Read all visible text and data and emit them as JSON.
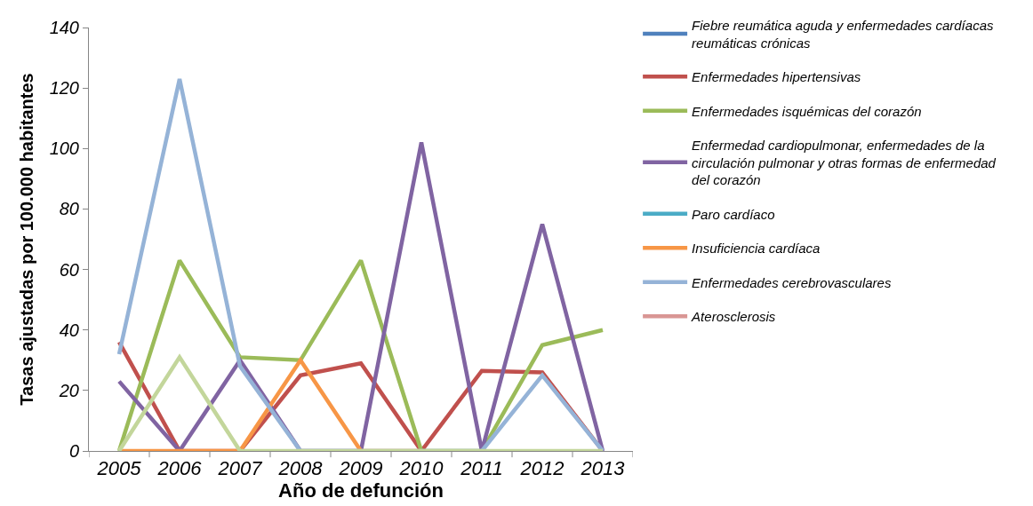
{
  "chart_data": {
    "type": "line",
    "xlabel": "Año de defunción",
    "ylabel": "Tasas ajustadas por 100.000 habitantes",
    "categories": [
      "2005",
      "2006",
      "2007",
      "2008",
      "2009",
      "2010",
      "2011",
      "2012",
      "2013"
    ],
    "ylim": [
      0,
      140
    ],
    "yticks": [
      0,
      20,
      40,
      60,
      80,
      100,
      120,
      140
    ],
    "legend": "right",
    "marker": "none",
    "line_style": "solid",
    "series": [
      {
        "name": "Fiebre reumática aguda y enfermedades cardíacas reumáticas crónicas",
        "color": "#4f81bd",
        "values": [
          null,
          null,
          null,
          null,
          null,
          null,
          null,
          null,
          null
        ]
      },
      {
        "name": "Enfermedades hipertensivas",
        "color": "#c0504d",
        "values": [
          36,
          0,
          0,
          25,
          29,
          0,
          26.5,
          26,
          0
        ]
      },
      {
        "name": "Enfermedades isquémicas del corazón",
        "color": "#9bbb59",
        "values": [
          0,
          63,
          31,
          30,
          63,
          0,
          0,
          35,
          40
        ]
      },
      {
        "name": "Enfermedad cardiopulmonar, enfermedades de la circulación pulmonar y otras formas de enfermedad del corazón",
        "color": "#8064a2",
        "values": [
          23,
          0,
          30,
          0,
          0,
          102,
          0,
          75,
          0
        ]
      },
      {
        "name": "Paro cardíaco",
        "color": "#4bacc6",
        "values": [
          null,
          null,
          null,
          null,
          null,
          null,
          null,
          null,
          null
        ]
      },
      {
        "name": "Insuficiencia cardíaca",
        "color": "#f79646",
        "values": [
          0,
          0,
          0,
          30,
          0,
          0,
          null,
          null,
          null
        ]
      },
      {
        "name": "Enfermedades cerebrovasculares",
        "color": "#95b3d7",
        "values": [
          32,
          123,
          28,
          0,
          0,
          0,
          0,
          25,
          0
        ]
      },
      {
        "name": "Aterosclerosis",
        "color": "#d99694",
        "values": [
          null,
          null,
          null,
          null,
          null,
          null,
          null,
          null,
          null
        ]
      },
      {
        "color": "#c3d69b",
        "values": [
          0,
          31,
          0,
          0,
          0,
          0,
          0,
          0,
          0
        ]
      }
    ]
  }
}
